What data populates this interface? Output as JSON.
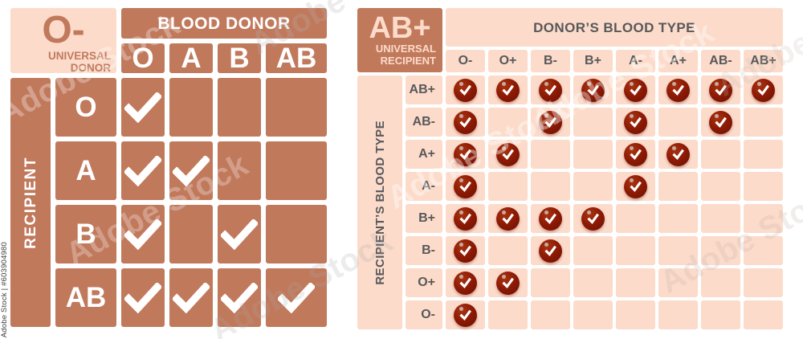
{
  "page": {
    "background": "#ffffff"
  },
  "colors": {
    "terracotta": "#c1795c",
    "light_pink": "#fcdbca",
    "text_dark_gray": "#58585b",
    "check_white": "#ffffff",
    "blood_red_dark": "#6e1003",
    "blood_red": "#8e1b05",
    "blood_red_light": "#a93310"
  },
  "chart_data": [
    {
      "type": "table",
      "corner_title": "O-",
      "corner_subtitle_line1": "UNIVERSAL",
      "corner_subtitle_line2": "DONOR",
      "header": "BLOOD DONOR",
      "side_label": "RECIPIENT",
      "columns": [
        "O",
        "A",
        "B",
        "AB"
      ],
      "rows": [
        "O",
        "A",
        "B",
        "AB"
      ],
      "matrix": [
        [
          1,
          0,
          0,
          0
        ],
        [
          1,
          1,
          0,
          0
        ],
        [
          1,
          0,
          1,
          0
        ],
        [
          1,
          1,
          1,
          1
        ]
      ],
      "check_style": "white-check"
    },
    {
      "type": "table",
      "corner_title": "AB+",
      "corner_subtitle_line1": "UNIVERSAL",
      "corner_subtitle_line2": "RECIPIENT",
      "header": "DONOR’S BLOOD TYPE",
      "side_label": "RECIPIENT’S BLOOD TYPE",
      "columns": [
        "O-",
        "O+",
        "B-",
        "B+",
        "A-",
        "A+",
        "AB-",
        "AB+"
      ],
      "rows": [
        "AB+",
        "AB-",
        "A+",
        "A-",
        "B+",
        "B-",
        "O+",
        "O-"
      ],
      "matrix": [
        [
          1,
          1,
          1,
          1,
          1,
          1,
          1,
          1
        ],
        [
          1,
          0,
          1,
          0,
          1,
          0,
          1,
          0
        ],
        [
          1,
          1,
          0,
          0,
          1,
          1,
          0,
          0
        ],
        [
          1,
          0,
          0,
          0,
          1,
          0,
          0,
          0
        ],
        [
          1,
          1,
          1,
          1,
          0,
          0,
          0,
          0
        ],
        [
          1,
          0,
          1,
          0,
          0,
          0,
          0,
          0
        ],
        [
          1,
          1,
          0,
          0,
          0,
          0,
          0,
          0
        ],
        [
          1,
          0,
          0,
          0,
          0,
          0,
          0,
          0
        ]
      ],
      "check_style": "blood-drop-check"
    }
  ],
  "watermark": {
    "label": "Adobe Stock",
    "credit": "Adobe Stock | #603904980"
  }
}
